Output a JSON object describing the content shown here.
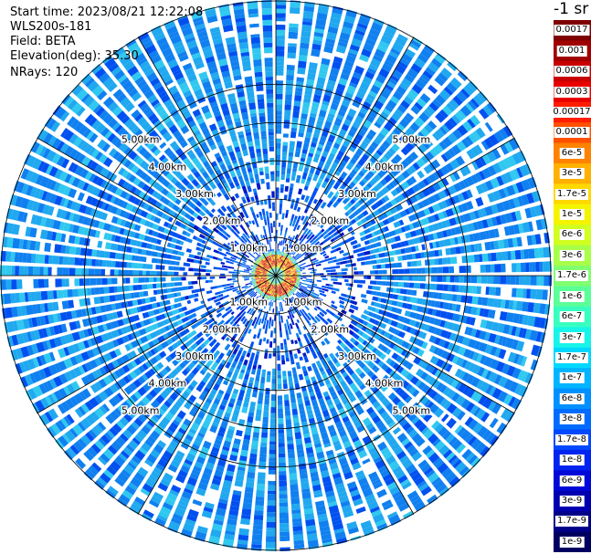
{
  "info": {
    "start_time": "Start time: 2023/08/21 12:22:08",
    "instrument": "WLS200s-181",
    "field": "Field: BETA",
    "elevation": "Elevation(deg): 35.30",
    "nrays": "NRays: 120"
  },
  "colorbar": {
    "units": "-1 sr",
    "labels": [
      "0.0017",
      "0.001",
      "0.0006",
      "0.0003",
      "0.00017",
      "0.0001",
      "6e-5",
      "3e-5",
      "1.7e-5",
      "1e-5",
      "6e-6",
      "3e-6",
      "1.7e-6",
      "1e-6",
      "6e-7",
      "3e-7",
      "1.7e-7",
      "1e-7",
      "6e-8",
      "3e-8",
      "1.7e-8",
      "1e-8",
      "6e-9",
      "3e-9",
      "1.7e-9",
      "1e-9"
    ],
    "colors": [
      "#7f0000",
      "#a00000",
      "#c80000",
      "#e80000",
      "#ff1e00",
      "#ff5000",
      "#ff8200",
      "#ffb000",
      "#ffd800",
      "#f4f400",
      "#d0ff20",
      "#a8ff48",
      "#80ff70",
      "#5aff98",
      "#38ffc0",
      "#18f4e8",
      "#00d8ff",
      "#00b4ff",
      "#0090ff",
      "#006cff",
      "#0048ff",
      "#0024f0",
      "#0008d8",
      "#0000b0",
      "#000088",
      "#000060"
    ]
  },
  "chart_data": {
    "type": "heatmap",
    "projection": "polar (PPI scan)",
    "field": "BETA",
    "n_rays": 120,
    "range_rings_km": [
      1,
      2,
      3,
      4,
      5
    ],
    "range_labels": [
      "1.00km",
      "2.00km",
      "3.00km",
      "4.00km",
      "5.00km"
    ],
    "max_range_km": 7.2,
    "colorscale": "log, 1e-9 to 0.0017 sr-1",
    "pattern": {
      "center_low_km": [
        0,
        0.2
      ],
      "center_value": "1e-7",
      "ring_high_km": [
        0.25,
        0.55
      ],
      "ring_value": "6e-5 to 0.0003",
      "mid_range_km": [
        0.6,
        2.5
      ],
      "mid_value": "1e-8 to 6e-9 (sparse)",
      "far_range_km": [
        2.5,
        7.2
      ],
      "far_value": "6e-8 to 1e-7"
    }
  }
}
